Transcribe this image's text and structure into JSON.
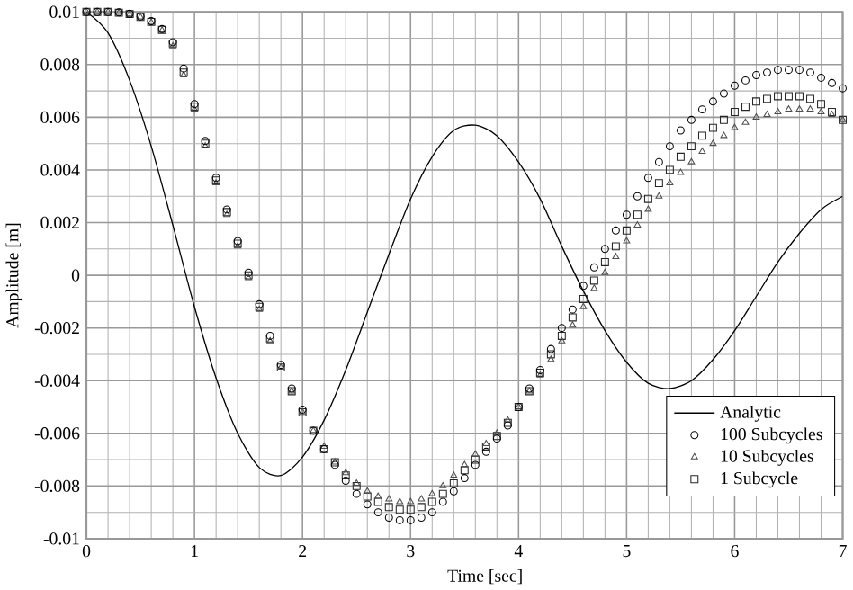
{
  "chart_data": {
    "type": "line",
    "xlabel": "Time [sec]",
    "ylabel": "Amplitude [m]",
    "xlim": [
      0,
      7
    ],
    "ylim": [
      -0.01,
      0.01
    ],
    "xticks": [
      0,
      1,
      2,
      3,
      4,
      5,
      6,
      7
    ],
    "yticks": [
      -0.01,
      -0.008,
      -0.006,
      -0.004,
      -0.002,
      0,
      0.002,
      0.004,
      0.006,
      0.008,
      0.01
    ],
    "grid": true,
    "legend": "bottom right",
    "series": [
      {
        "name": "Analytic",
        "marker": "none",
        "line_style": "solid",
        "color": "#000000",
        "x": [
          0,
          0.2,
          0.4,
          0.6,
          0.8,
          1.0,
          1.2,
          1.4,
          1.6,
          1.8,
          2.0,
          2.2,
          2.4,
          2.6,
          2.8,
          3.0,
          3.2,
          3.4,
          3.6,
          3.8,
          4.0,
          4.2,
          4.4,
          4.6,
          4.8,
          5.0,
          5.2,
          5.4,
          5.6,
          5.8,
          6.0,
          6.2,
          6.4,
          6.6,
          6.8,
          7.0
        ],
        "values": [
          0.01,
          0.0092,
          0.0074,
          0.0049,
          0.0019,
          -0.0012,
          -0.0039,
          -0.006,
          -0.0073,
          -0.0076,
          -0.0069,
          -0.0055,
          -0.0036,
          -0.0014,
          0.0008,
          0.0029,
          0.0045,
          0.0055,
          0.0057,
          0.0053,
          0.0043,
          0.0029,
          0.0011,
          -0.0006,
          -0.0021,
          -0.0033,
          -0.0041,
          -0.0043,
          -0.004,
          -0.0032,
          -0.0021,
          -0.0008,
          0.0005,
          0.0016,
          0.0025,
          0.003
        ]
      },
      {
        "name": "100 Subcycles",
        "type": "scatter",
        "marker": "circle",
        "color": "#000000",
        "x": [
          0,
          0.1,
          0.2,
          0.3,
          0.4,
          0.5,
          0.6,
          0.7,
          0.8,
          0.9,
          1.0,
          1.1,
          1.2,
          1.3,
          1.4,
          1.5,
          1.6,
          1.7,
          1.8,
          1.9,
          2.0,
          2.1,
          2.2,
          2.3,
          2.4,
          2.5,
          2.6,
          2.7,
          2.8,
          2.9,
          3.0,
          3.1,
          3.2,
          3.3,
          3.4,
          3.5,
          3.6,
          3.7,
          3.8,
          3.9,
          4.0,
          4.1,
          4.2,
          4.3,
          4.4,
          4.5,
          4.6,
          4.7,
          4.8,
          4.9,
          5.0,
          5.1,
          5.2,
          5.3,
          5.4,
          5.5,
          5.6,
          5.7,
          5.8,
          5.9,
          6.0,
          6.1,
          6.2,
          6.3,
          6.4,
          6.5,
          6.6,
          6.7,
          6.8,
          6.9,
          7.0
        ],
        "values": [
          0.01,
          0.01,
          0.01,
          0.00998,
          0.00993,
          0.00983,
          0.00965,
          0.00935,
          0.00885,
          0.00785,
          0.0065,
          0.0051,
          0.0037,
          0.0025,
          0.0013,
          0.0001,
          -0.0011,
          -0.0023,
          -0.0034,
          -0.0043,
          -0.0051,
          -0.0059,
          -0.0066,
          -0.0072,
          -0.0078,
          -0.0083,
          -0.0087,
          -0.009,
          -0.0092,
          -0.0093,
          -0.0093,
          -0.0092,
          -0.009,
          -0.0086,
          -0.0082,
          -0.0077,
          -0.0072,
          -0.0067,
          -0.0062,
          -0.0057,
          -0.005,
          -0.0043,
          -0.0036,
          -0.0028,
          -0.002,
          -0.0013,
          -0.0004,
          0.0003,
          0.001,
          0.0017,
          0.0023,
          0.003,
          0.0037,
          0.0043,
          0.0049,
          0.0055,
          0.0059,
          0.0063,
          0.0066,
          0.0069,
          0.0072,
          0.0074,
          0.0076,
          0.0077,
          0.0078,
          0.0078,
          0.0078,
          0.0077,
          0.0075,
          0.0073,
          0.0071
        ]
      },
      {
        "name": "10 Subcycles",
        "type": "scatter",
        "marker": "triangle",
        "color": "#4d4d4d",
        "x": [
          0,
          0.1,
          0.2,
          0.3,
          0.4,
          0.5,
          0.6,
          0.7,
          0.8,
          0.9,
          1.0,
          1.1,
          1.2,
          1.3,
          1.4,
          1.5,
          1.6,
          1.7,
          1.8,
          1.9,
          2.0,
          2.1,
          2.2,
          2.3,
          2.4,
          2.5,
          2.6,
          2.7,
          2.8,
          2.9,
          3.0,
          3.1,
          3.2,
          3.3,
          3.4,
          3.5,
          3.6,
          3.7,
          3.8,
          3.9,
          4.0,
          4.1,
          4.2,
          4.3,
          4.4,
          4.5,
          4.6,
          4.7,
          4.8,
          4.9,
          5.0,
          5.1,
          5.2,
          5.3,
          5.4,
          5.5,
          5.6,
          5.7,
          5.8,
          5.9,
          6.0,
          6.1,
          6.2,
          6.3,
          6.4,
          6.5,
          6.6,
          6.7,
          6.8,
          6.9,
          7.0
        ],
        "values": [
          0.01,
          0.01,
          0.01,
          0.00997,
          0.00991,
          0.0098,
          0.0096,
          0.0093,
          0.0087,
          0.0076,
          0.0063,
          0.0049,
          0.0035,
          0.0023,
          0.0011,
          -0.0001,
          -0.0013,
          -0.0025,
          -0.0035,
          -0.0044,
          -0.0052,
          -0.0059,
          -0.0065,
          -0.0071,
          -0.0075,
          -0.0079,
          -0.0082,
          -0.0084,
          -0.0085,
          -0.0086,
          -0.0086,
          -0.0085,
          -0.0083,
          -0.008,
          -0.0076,
          -0.0072,
          -0.0068,
          -0.0064,
          -0.006,
          -0.0055,
          -0.005,
          -0.0044,
          -0.0038,
          -0.0032,
          -0.0025,
          -0.0019,
          -0.0012,
          -0.0005,
          0.0001,
          0.0007,
          0.0013,
          0.0019,
          0.0025,
          0.003,
          0.0035,
          0.0039,
          0.0043,
          0.0047,
          0.005,
          0.0053,
          0.0056,
          0.0058,
          0.006,
          0.0061,
          0.0062,
          0.0063,
          0.0063,
          0.0063,
          0.0062,
          0.0061,
          0.0059
        ]
      },
      {
        "name": "1 Subcycle",
        "type": "scatter",
        "marker": "square",
        "color": "#262626",
        "x": [
          0,
          0.1,
          0.2,
          0.3,
          0.4,
          0.5,
          0.6,
          0.7,
          0.8,
          0.9,
          1.0,
          1.1,
          1.2,
          1.3,
          1.4,
          1.5,
          1.6,
          1.7,
          1.8,
          1.9,
          2.0,
          2.1,
          2.2,
          2.3,
          2.4,
          2.5,
          2.6,
          2.7,
          2.8,
          2.9,
          3.0,
          3.1,
          3.2,
          3.3,
          3.4,
          3.5,
          3.6,
          3.7,
          3.8,
          3.9,
          4.0,
          4.1,
          4.2,
          4.3,
          4.4,
          4.5,
          4.6,
          4.7,
          4.8,
          4.9,
          5.0,
          5.1,
          5.2,
          5.3,
          5.4,
          5.5,
          5.6,
          5.7,
          5.8,
          5.9,
          6.0,
          6.1,
          6.2,
          6.3,
          6.4,
          6.5,
          6.6,
          6.7,
          6.8,
          6.9,
          7.0
        ],
        "values": [
          0.01,
          0.01,
          0.01,
          0.00997,
          0.00992,
          0.00981,
          0.00962,
          0.00932,
          0.0088,
          0.0077,
          0.0064,
          0.005,
          0.0036,
          0.0024,
          0.0012,
          0.0,
          -0.0012,
          -0.0024,
          -0.0035,
          -0.0044,
          -0.0052,
          -0.0059,
          -0.0066,
          -0.0071,
          -0.0076,
          -0.008,
          -0.0084,
          -0.0086,
          -0.0088,
          -0.0089,
          -0.0089,
          -0.0088,
          -0.0086,
          -0.0083,
          -0.0079,
          -0.0074,
          -0.007,
          -0.0065,
          -0.0061,
          -0.0056,
          -0.005,
          -0.0044,
          -0.0037,
          -0.003,
          -0.0023,
          -0.0016,
          -0.0009,
          -0.0002,
          0.0005,
          0.0011,
          0.0017,
          0.0023,
          0.0029,
          0.0035,
          0.004,
          0.0045,
          0.0049,
          0.0053,
          0.0056,
          0.0059,
          0.0062,
          0.0064,
          0.0066,
          0.0067,
          0.0068,
          0.0068,
          0.0068,
          0.0067,
          0.0065,
          0.0062,
          0.0059
        ]
      }
    ]
  }
}
